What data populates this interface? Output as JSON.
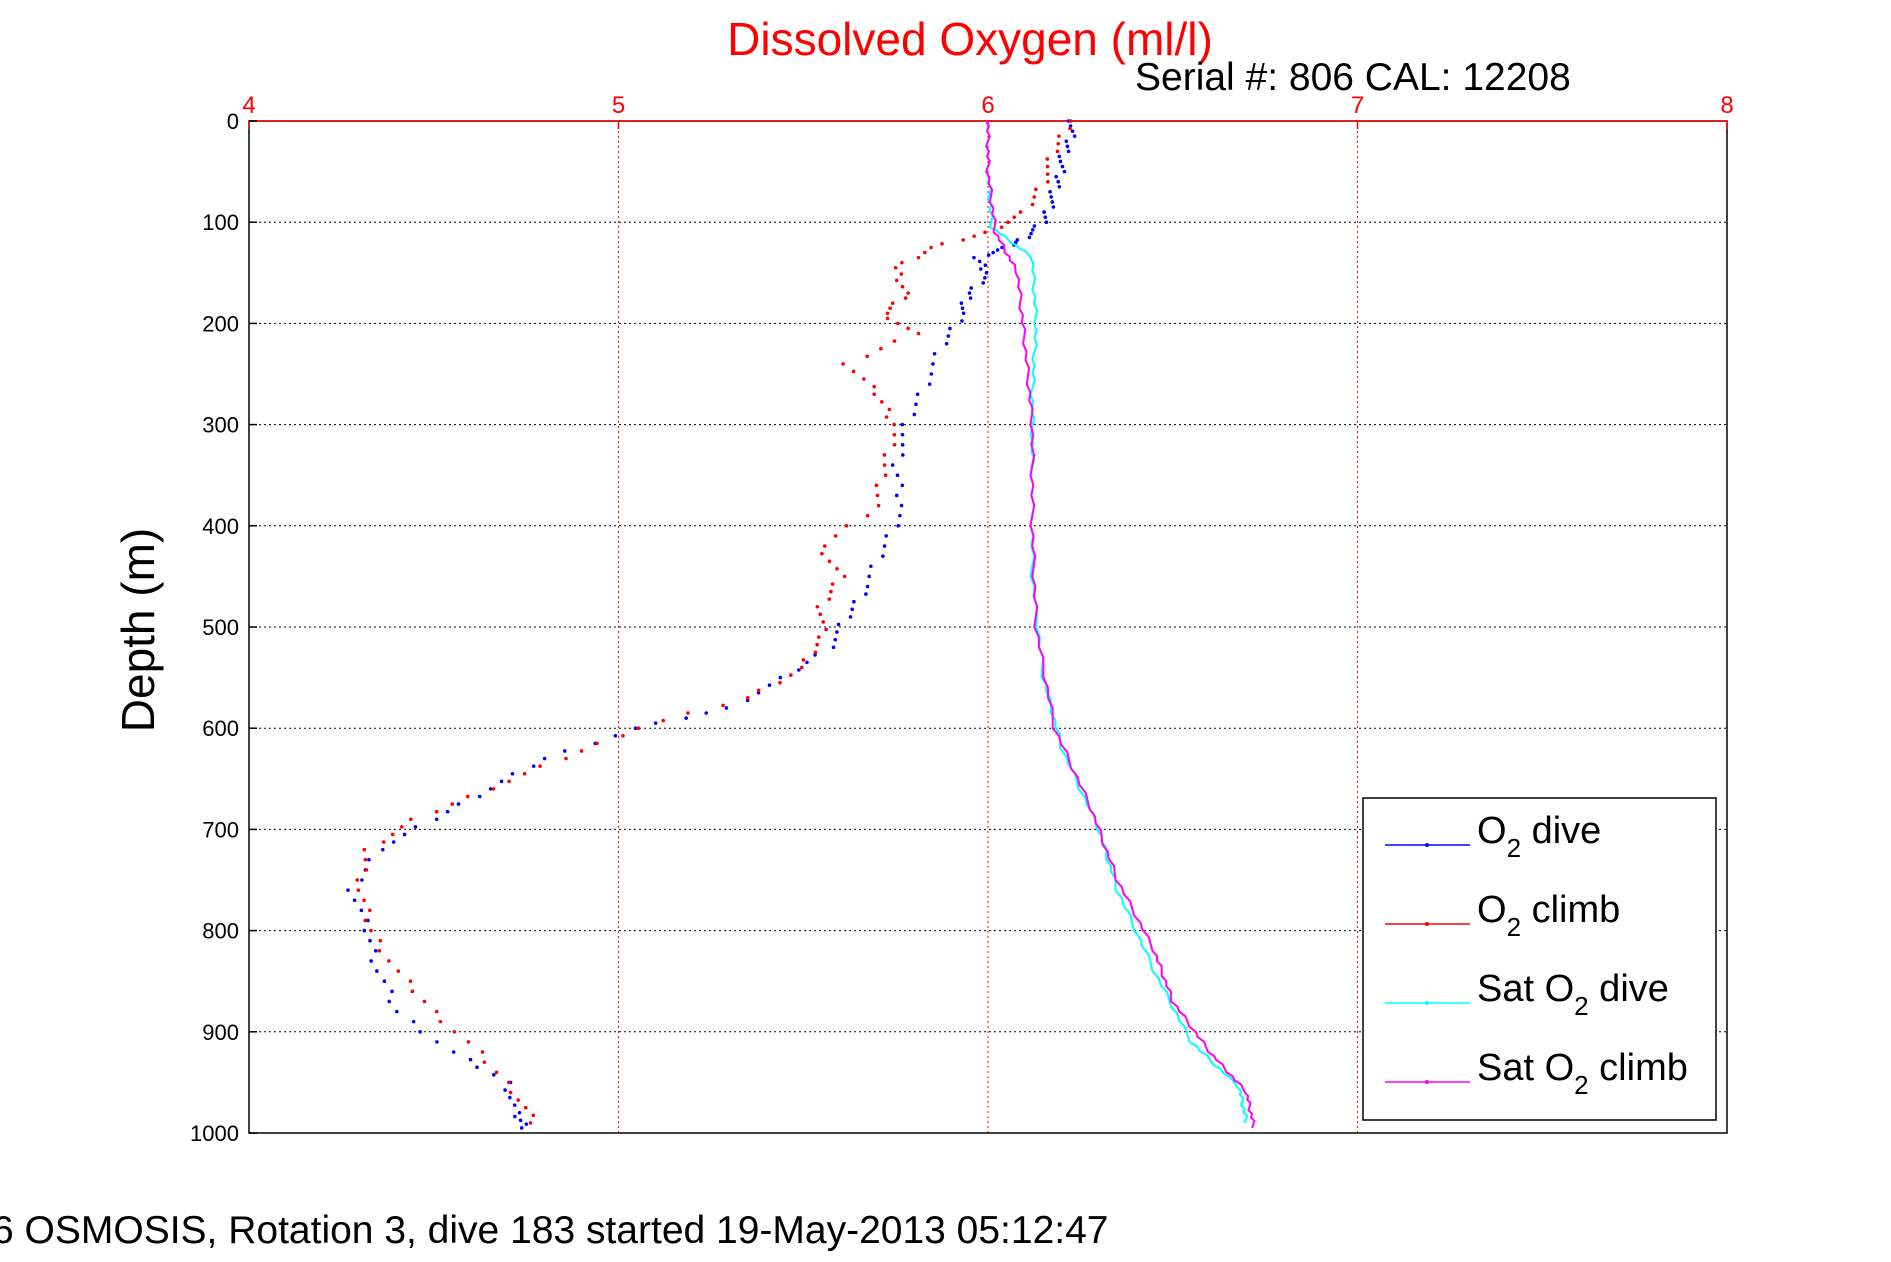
{
  "chart_data": {
    "type": "scatter",
    "title": "Dissolved Oxygen (ml/l)",
    "serial_text": "Serial #: 806  CAL: 12208",
    "ylabel": "Depth (m)",
    "xlim": [
      4,
      8
    ],
    "ylim": [
      0,
      1000
    ],
    "y_reversed": true,
    "x_axis_position": "top",
    "x_ticks": [
      4,
      5,
      6,
      7,
      8
    ],
    "y_ticks": [
      0,
      100,
      200,
      300,
      400,
      500,
      600,
      700,
      800,
      900,
      1000
    ],
    "grid": true,
    "legend_placement": "lower-right",
    "series": [
      {
        "name": "O2 dive",
        "legend": {
          "prefix": "O",
          "sub": "2",
          "suffix": " dive"
        },
        "color": "#0000ff",
        "style": "dots",
        "points": [
          [
            6.23,
            0
          ],
          [
            6.22,
            20
          ],
          [
            6.2,
            40
          ],
          [
            6.19,
            60
          ],
          [
            6.17,
            80
          ],
          [
            6.15,
            100
          ],
          [
            6.1,
            115
          ],
          [
            6.05,
            125
          ],
          [
            5.97,
            135
          ],
          [
            6.0,
            150
          ],
          [
            5.95,
            170
          ],
          [
            5.93,
            190
          ],
          [
            5.88,
            220
          ],
          [
            5.83,
            260
          ],
          [
            5.78,
            300
          ],
          [
            5.75,
            340
          ],
          [
            5.77,
            380
          ],
          [
            5.72,
            420
          ],
          [
            5.67,
            460
          ],
          [
            5.62,
            490
          ],
          [
            5.57,
            520
          ],
          [
            5.45,
            550
          ],
          [
            5.3,
            580
          ],
          [
            5.05,
            600
          ],
          [
            4.8,
            630
          ],
          [
            4.65,
            660
          ],
          [
            4.5,
            690
          ],
          [
            4.35,
            720
          ],
          [
            4.28,
            760
          ],
          [
            4.32,
            800
          ],
          [
            4.35,
            840
          ],
          [
            4.4,
            880
          ],
          [
            4.55,
            920
          ],
          [
            4.7,
            950
          ],
          [
            4.72,
            980
          ],
          [
            4.75,
            995
          ]
        ]
      },
      {
        "name": "O2 climb",
        "legend": {
          "prefix": "O",
          "sub": "2",
          "suffix": " climb"
        },
        "color": "#ff0000",
        "style": "dots",
        "points": [
          [
            6.22,
            0
          ],
          [
            6.18,
            30
          ],
          [
            6.15,
            60
          ],
          [
            6.1,
            90
          ],
          [
            6.0,
            110
          ],
          [
            5.85,
            125
          ],
          [
            5.75,
            145
          ],
          [
            5.78,
            170
          ],
          [
            5.72,
            190
          ],
          [
            5.8,
            210
          ],
          [
            5.62,
            240
          ],
          [
            5.7,
            270
          ],
          [
            5.75,
            300
          ],
          [
            5.72,
            340
          ],
          [
            5.7,
            380
          ],
          [
            5.55,
            420
          ],
          [
            5.6,
            450
          ],
          [
            5.55,
            480
          ],
          [
            5.55,
            510
          ],
          [
            5.5,
            540
          ],
          [
            5.35,
            570
          ],
          [
            5.05,
            600
          ],
          [
            4.85,
            630
          ],
          [
            4.65,
            660
          ],
          [
            4.45,
            690
          ],
          [
            4.32,
            720
          ],
          [
            4.3,
            760
          ],
          [
            4.33,
            800
          ],
          [
            4.4,
            840
          ],
          [
            4.5,
            880
          ],
          [
            4.62,
            920
          ],
          [
            4.72,
            960
          ],
          [
            4.77,
            990
          ]
        ]
      },
      {
        "name": "Sat O2 dive",
        "legend": {
          "prefix": "Sat O",
          "sub": "2",
          "suffix": " dive"
        },
        "color": "#00ffff",
        "style": "line",
        "points": [
          [
            6.0,
            0
          ],
          [
            6.0,
            50
          ],
          [
            6.01,
            105
          ],
          [
            6.12,
            135
          ],
          [
            6.13,
            200
          ],
          [
            6.12,
            270
          ],
          [
            6.12,
            350
          ],
          [
            6.12,
            450
          ],
          [
            6.15,
            550
          ],
          [
            6.2,
            620
          ],
          [
            6.3,
            700
          ],
          [
            6.35,
            760
          ],
          [
            6.45,
            840
          ],
          [
            6.55,
            910
          ],
          [
            6.68,
            955
          ],
          [
            6.7,
            990
          ]
        ]
      },
      {
        "name": "Sat O2 climb",
        "legend": {
          "prefix": "Sat O",
          "sub": "2",
          "suffix": " climb"
        },
        "color": "#ff00ff",
        "style": "line",
        "points": [
          [
            6.0,
            0
          ],
          [
            6.0,
            50
          ],
          [
            6.02,
            110
          ],
          [
            6.08,
            150
          ],
          [
            6.1,
            220
          ],
          [
            6.12,
            300
          ],
          [
            6.12,
            400
          ],
          [
            6.13,
            500
          ],
          [
            6.18,
            600
          ],
          [
            6.28,
            680
          ],
          [
            6.35,
            750
          ],
          [
            6.45,
            820
          ],
          [
            6.5,
            870
          ],
          [
            6.6,
            920
          ],
          [
            6.7,
            960
          ],
          [
            6.72,
            995
          ]
        ]
      }
    ]
  },
  "footer": {
    "caption": "6 OSMOSIS, Rotation 3, dive 183 started 19-May-2013 05:12:47"
  }
}
